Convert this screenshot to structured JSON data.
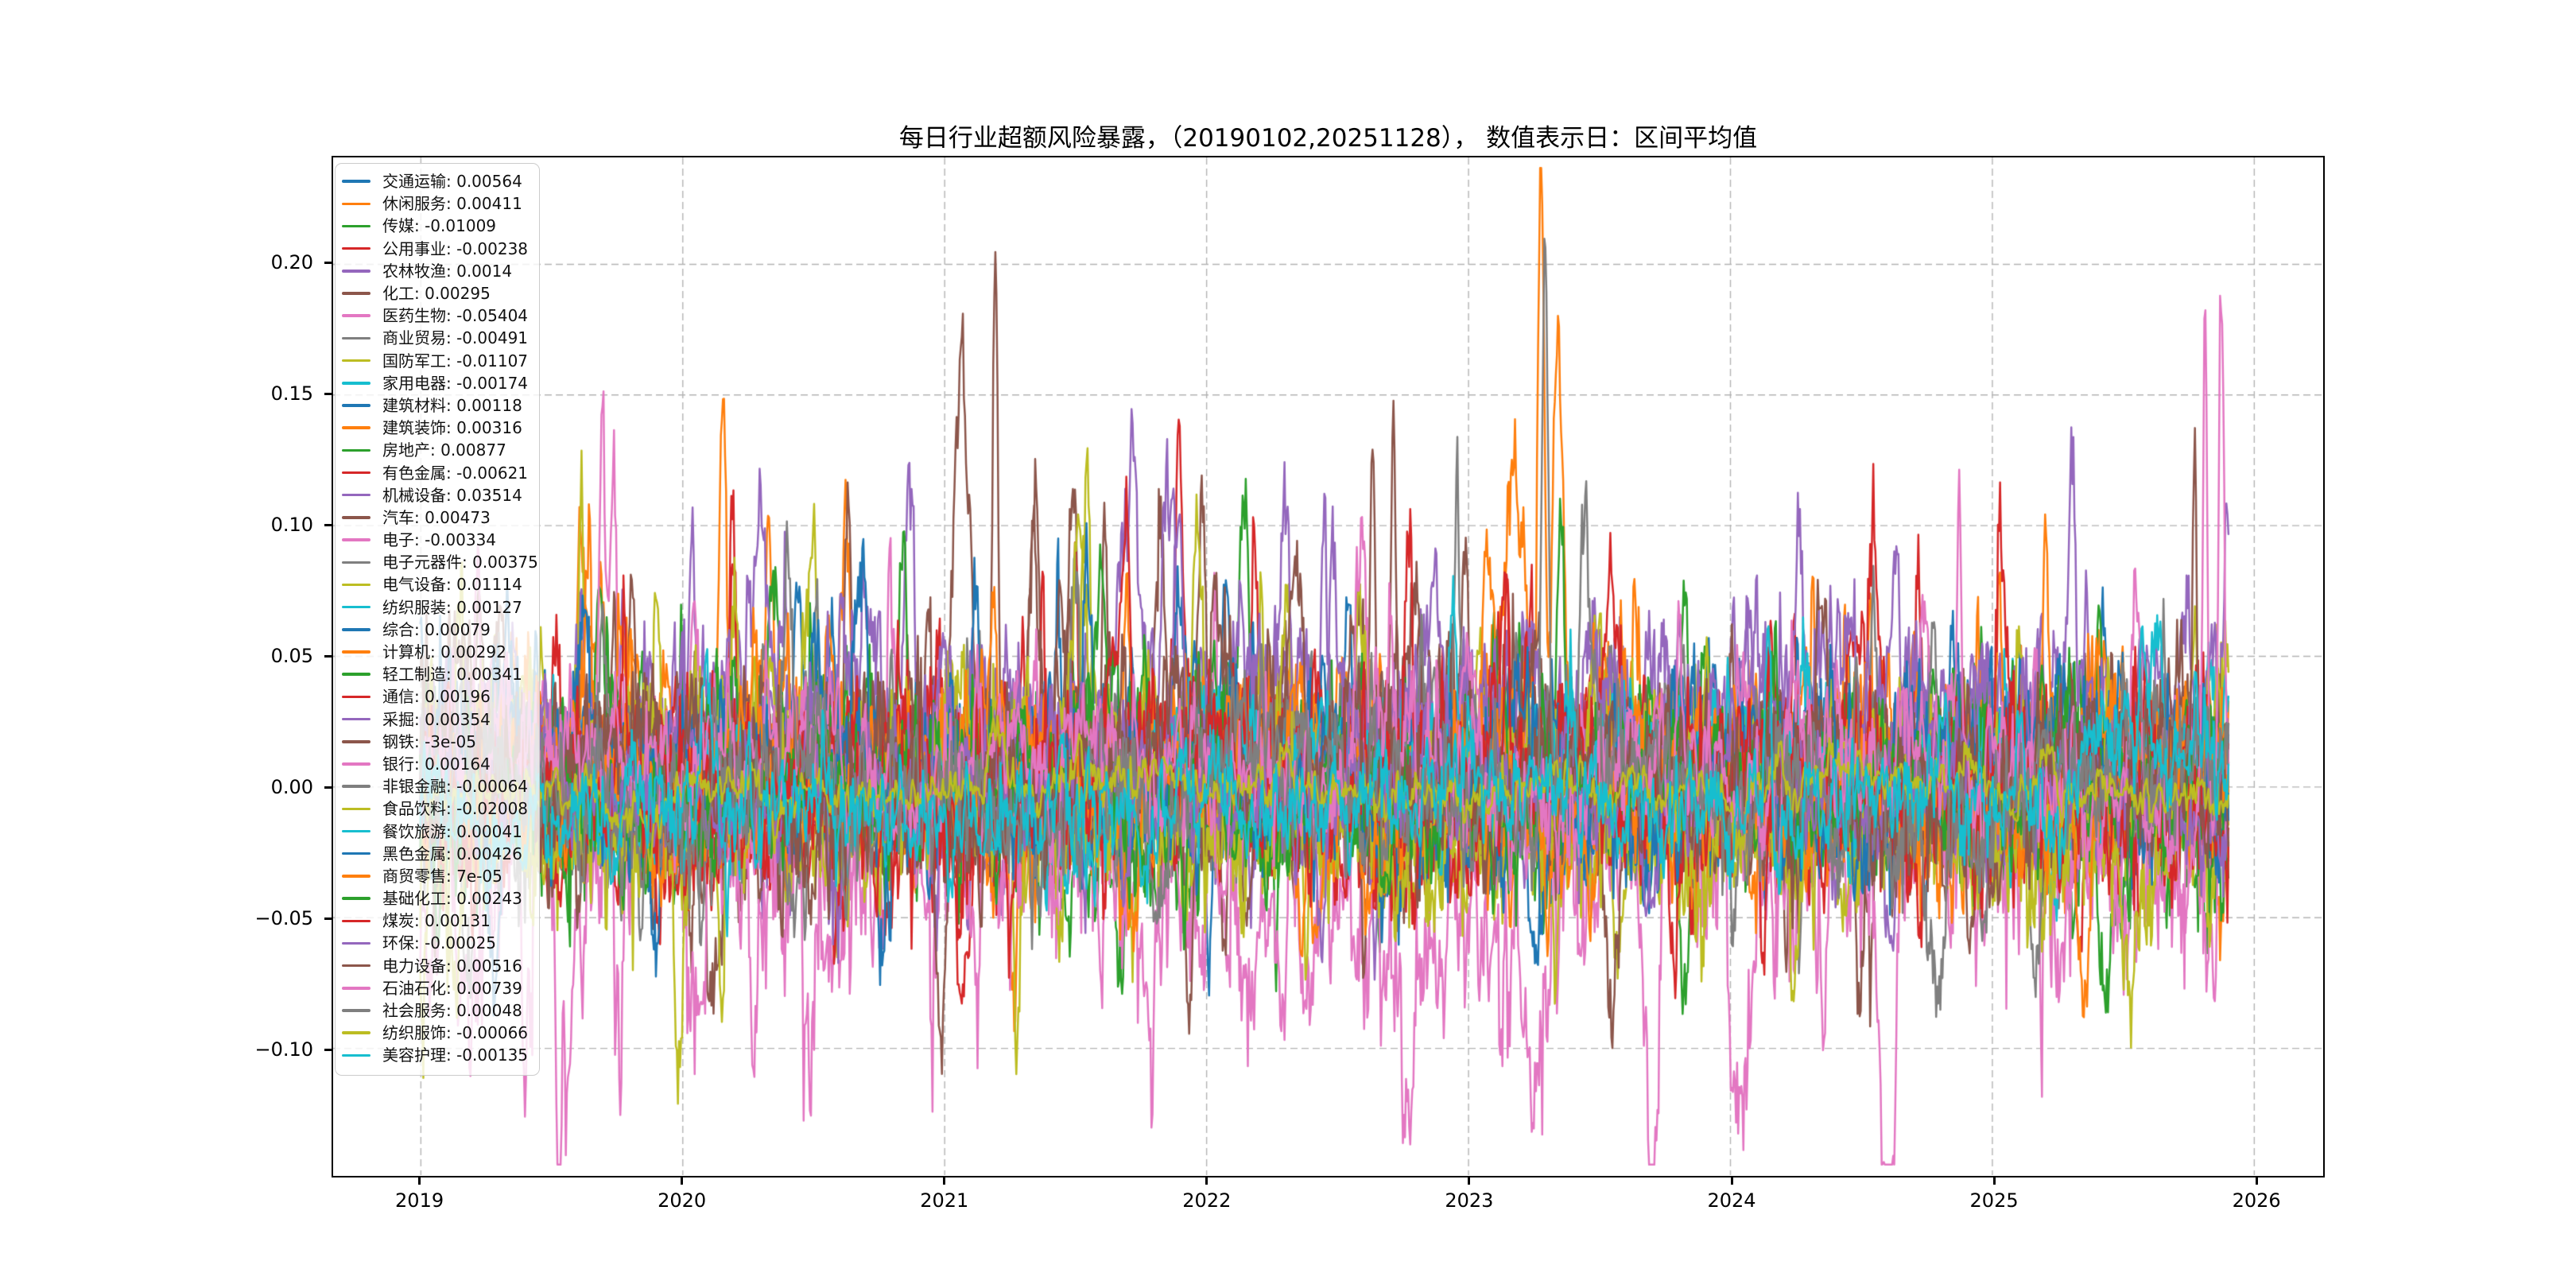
{
  "chart_data": {
    "type": "line",
    "title": "每日行业超额风险暴露，（20190102,20251128）， 数值表示日：区间平均值",
    "date_range": [
      "20190102",
      "20251128"
    ],
    "xlim": [
      2018.665,
      2026.26
    ],
    "ylim": [
      -0.1485,
      0.2409
    ],
    "x_ticks": [
      2019,
      2020,
      2021,
      2022,
      2023,
      2024,
      2025,
      2026
    ],
    "x_tick_labels": [
      "2019",
      "2020",
      "2021",
      "2022",
      "2023",
      "2024",
      "2025",
      "2026"
    ],
    "y_ticks": [
      0.2,
      0.15,
      0.1,
      0.05,
      0.0,
      -0.05,
      -0.1
    ],
    "y_tick_labels": [
      "0.20",
      "0.15",
      "0.10",
      "0.05",
      "0.00",
      "−0.05",
      "−0.10"
    ],
    "x_start": 2019.005,
    "x_end": 2025.91,
    "grid": {
      "on": true,
      "linestyle": "dashed",
      "color": "#b3b3b3"
    },
    "legend": {
      "position": "upper left",
      "framealpha": 0.8,
      "border_color": "#cccccc"
    },
    "line_width": 2.5,
    "n_series": 40,
    "series": [
      {
        "name": "交通运输",
        "value": 0.00564,
        "label": "交通运输: 0.00564",
        "color": "#1f77b4",
        "amp": 0.011,
        "peaks": [
          [
            2022.55,
            0.088,
            0.018
          ]
        ]
      },
      {
        "name": "休闲服务",
        "value": 0.00411,
        "label": "休闲服务: 0.00411",
        "color": "#ff7f0e",
        "amp": 0.014,
        "peaks": [
          [
            2019.62,
            0.075,
            0.02
          ],
          [
            2020.16,
            0.124,
            0.012
          ],
          [
            2020.34,
            0.093,
            0.015
          ],
          [
            2020.63,
            0.08,
            0.02
          ],
          [
            2023.15,
            0.075,
            0.045
          ],
          [
            2023.285,
            0.225,
            0.013
          ],
          [
            2023.35,
            0.16,
            0.018
          ],
          [
            2024.9,
            -0.062,
            0.025
          ]
        ]
      },
      {
        "name": "传媒",
        "value": -0.01009,
        "label": "传媒: -0.01009",
        "color": "#2ca02c",
        "amp": 0.013,
        "peaks": [
          [
            2020.35,
            0.09,
            0.018
          ],
          [
            2023.36,
            0.115,
            0.014
          ],
          [
            2025.6,
            0.065,
            0.02
          ]
        ]
      },
      {
        "name": "公用事业",
        "value": -0.00238,
        "label": "公用事业: -0.00238",
        "color": "#d62728",
        "amp": 0.01,
        "peaks": [
          [
            2020.2,
            0.08,
            0.015
          ]
        ]
      },
      {
        "name": "农林牧渔",
        "value": 0.0014,
        "label": "农林牧渔: 0.0014",
        "color": "#9467bd",
        "amp": 0.012,
        "peaks": [
          [
            2019.78,
            0.095,
            0.014
          ],
          [
            2020.87,
            0.095,
            0.016
          ]
        ]
      },
      {
        "name": "化工",
        "value": 0.00295,
        "label": "化工: 0.00295",
        "color": "#8c564b",
        "amp": 0.014,
        "peaks": [
          [
            2020.64,
            0.122,
            0.013
          ],
          [
            2021.08,
            0.128,
            0.028
          ],
          [
            2021.2,
            0.183,
            0.011
          ],
          [
            2021.35,
            0.11,
            0.02
          ],
          [
            2021.5,
            0.104,
            0.024
          ],
          [
            2021.62,
            0.112,
            0.012
          ],
          [
            2021.83,
            0.114,
            0.018
          ]
        ]
      },
      {
        "name": "医药生物",
        "value": -0.05404,
        "label": "医药生物: -0.05404",
        "color": "#e377c2",
        "amp": 0.02,
        "base": -0.046,
        "peaks": [
          [
            2019.77,
            -0.104,
            0.018
          ],
          [
            2020.06,
            -0.099,
            0.016
          ],
          [
            2020.5,
            -0.072,
            0.03
          ],
          [
            2020.96,
            -0.099,
            0.018
          ],
          [
            2021.12,
            -0.104,
            0.014
          ],
          [
            2021.8,
            -0.088,
            0.03
          ],
          [
            2022.3,
            -0.085,
            0.03
          ],
          [
            2022.8,
            -0.09,
            0.028
          ],
          [
            2023.3,
            -0.1,
            0.028
          ],
          [
            2023.71,
            -0.132,
            0.022
          ],
          [
            2024.05,
            -0.112,
            0.028
          ],
          [
            2024.6,
            -0.125,
            0.018
          ],
          [
            2024.95,
            -0.113,
            0.018
          ],
          [
            2025.55,
            -0.066,
            0.03
          ],
          [
            2025.85,
            -0.111,
            0.012
          ]
        ]
      },
      {
        "name": "商业贸易",
        "value": -0.00491,
        "label": "商业贸易: -0.00491",
        "color": "#7f7f7f",
        "amp": 0.011,
        "peaks": []
      },
      {
        "name": "国防军工",
        "value": -0.01107,
        "label": "国防军工: -0.01107",
        "color": "#bcbd22",
        "amp": 0.013,
        "peaks": [
          [
            2019.62,
            0.118,
            0.012
          ],
          [
            2021.55,
            0.095,
            0.018
          ],
          [
            2023.05,
            0.08,
            0.02
          ]
        ]
      },
      {
        "name": "家用电器",
        "value": -0.00174,
        "label": "家用电器: -0.00174",
        "color": "#17becf",
        "amp": 0.009,
        "peaks": []
      },
      {
        "name": "建筑材料",
        "value": 0.00118,
        "label": "建筑材料: 0.00118",
        "color": "#1f77b4",
        "amp": 0.008,
        "base": -0.002,
        "peaks": [
          [
            2020.45,
            0.07,
            0.02
          ]
        ]
      },
      {
        "name": "建筑装饰",
        "value": 0.00316,
        "label": "建筑装饰: 0.00316",
        "color": "#ff7f0e",
        "amp": 0.011,
        "peaks": [
          [
            2024.95,
            0.072,
            0.014
          ]
        ]
      },
      {
        "name": "房地产",
        "value": 0.00877,
        "label": "房地产: 0.00877",
        "color": "#2ca02c",
        "amp": 0.013,
        "peaks": [
          [
            2020.85,
            0.099,
            0.014
          ],
          [
            2022.15,
            0.088,
            0.018
          ],
          [
            2025.35,
            0.063,
            0.02
          ]
        ]
      },
      {
        "name": "有色金属",
        "value": -0.00621,
        "label": "有色金属: -0.00621",
        "color": "#d62728",
        "amp": 0.014,
        "peaks": [
          [
            2020.2,
            0.094,
            0.014
          ],
          [
            2021.9,
            0.099,
            0.018
          ],
          [
            2022.19,
            0.088,
            0.014
          ],
          [
            2024.55,
            0.08,
            0.018
          ]
        ]
      },
      {
        "name": "机械设备",
        "value": 0.03514,
        "label": "机械设备: 0.03514",
        "color": "#9467bd",
        "amp": 0.014,
        "base": 0.033,
        "peaks": [
          [
            2021.7,
            0.09,
            0.024
          ],
          [
            2024.27,
            0.114,
            0.013
          ],
          [
            2025.31,
            0.126,
            0.011
          ],
          [
            2025.9,
            0.072,
            0.014
          ]
        ]
      },
      {
        "name": "汽车",
        "value": 0.00473,
        "label": "汽车: 0.00473",
        "color": "#8c564b",
        "amp": 0.013,
        "peaks": [
          [
            2021.35,
            0.09,
            0.018
          ],
          [
            2022.64,
            0.124,
            0.011
          ],
          [
            2022.72,
            0.116,
            0.01
          ],
          [
            2023.0,
            0.088,
            0.025
          ]
        ]
      },
      {
        "name": "电子",
        "value": -0.00334,
        "label": "电子: -0.00334",
        "color": "#e377c2",
        "amp": 0.012,
        "peaks": [
          [
            2019.7,
            0.128,
            0.011
          ],
          [
            2019.74,
            0.111,
            0.016
          ],
          [
            2020.05,
            0.08,
            0.018
          ]
        ]
      },
      {
        "name": "电子元器件",
        "value": 0.00375,
        "label": "电子元器件: 0.00375",
        "color": "#7f7f7f",
        "amp": 0.012,
        "peaks": [
          [
            2021.5,
            0.08,
            0.018
          ],
          [
            2025.63,
            0.046,
            0.009
          ]
        ]
      },
      {
        "name": "电气设备",
        "value": 0.01114,
        "label": "电气设备: 0.01114",
        "color": "#bcbd22",
        "amp": 0.014,
        "peaks": [
          [
            2020.5,
            0.104,
            0.018
          ],
          [
            2021.97,
            0.118,
            0.013
          ],
          [
            2022.6,
            0.078,
            0.022
          ]
        ]
      },
      {
        "name": "纺织服装",
        "value": 0.00127,
        "label": "纺织服装: 0.00127",
        "color": "#17becf",
        "amp": 0.0035,
        "peaks": []
      },
      {
        "name": "综合",
        "value": 0.00079,
        "label": "综合: 0.00079",
        "color": "#1f77b4",
        "amp": 0.013,
        "peaks": [
          [
            2020.7,
            0.085,
            0.018
          ],
          [
            2021.9,
            0.08,
            0.018
          ]
        ]
      },
      {
        "name": "计算机",
        "value": 0.00292,
        "label": "计算机: 0.00292",
        "color": "#ff7f0e",
        "amp": 0.014,
        "peaks": [
          [
            2019.65,
            0.08,
            0.018
          ],
          [
            2023.08,
            0.099,
            0.018
          ],
          [
            2023.5,
            0.08,
            0.025
          ],
          [
            2025.21,
            0.101,
            0.012
          ]
        ]
      },
      {
        "name": "轻工制造",
        "value": 0.00341,
        "label": "轻工制造: 0.00341",
        "color": "#2ca02c",
        "amp": 0.01,
        "peaks": []
      },
      {
        "name": "通信",
        "value": 0.00196,
        "label": "通信: 0.00196",
        "color": "#d62728",
        "amp": 0.012,
        "peaks": [
          [
            2023.15,
            0.09,
            0.018
          ],
          [
            2025.05,
            0.07,
            0.018
          ]
        ]
      },
      {
        "name": "采掘",
        "value": 0.00354,
        "label": "采掘: 0.00354",
        "color": "#9467bd",
        "amp": 0.013,
        "peaks": [
          [
            2021.9,
            0.108,
            0.013
          ],
          [
            2022.3,
            0.08,
            0.018
          ]
        ]
      },
      {
        "name": "钢铁",
        "value": -3e-05,
        "label": "钢铁: -3e-05",
        "color": "#8c564b",
        "amp": 0.012,
        "peaks": [
          [
            2021.45,
            0.09,
            0.018
          ],
          [
            2023.55,
            -0.086,
            0.028
          ],
          [
            2024.5,
            -0.078,
            0.022
          ],
          [
            2025.0,
            -0.052,
            0.028
          ]
        ]
      },
      {
        "name": "银行",
        "value": 0.00164,
        "label": "银行: 0.00164",
        "color": "#e377c2",
        "amp": 0.007,
        "peaks": [
          [
            2023.0,
            0.045,
            0.05
          ]
        ]
      },
      {
        "name": "非银金融",
        "value": -0.00064,
        "label": "非银金融: -0.00064",
        "color": "#7f7f7f",
        "amp": 0.009,
        "peaks": [
          [
            2020.52,
            0.068,
            0.01
          ],
          [
            2024.78,
            0.078,
            0.01
          ]
        ]
      },
      {
        "name": "食品饮料",
        "value": -0.02008,
        "label": "食品饮料: -0.02008",
        "color": "#bcbd22",
        "amp": 0.015,
        "base": -0.018,
        "peaks": [
          [
            2020.0,
            -0.052,
            0.02
          ],
          [
            2021.28,
            -0.065,
            0.018
          ],
          [
            2023.9,
            -0.06,
            0.028
          ],
          [
            2025.5,
            -0.056,
            0.028
          ]
        ]
      },
      {
        "name": "餐饮旅游",
        "value": 0.00041,
        "label": "餐饮旅游: 0.00041",
        "color": "#17becf",
        "amp": 0.01,
        "peaks": [
          [
            2022.95,
            0.07,
            0.014
          ]
        ]
      },
      {
        "name": "黑色金属",
        "value": 0.00426,
        "label": "黑色金属: 0.00426",
        "color": "#1f77b4",
        "amp": 0.012,
        "peaks": [
          [
            2021.55,
            0.085,
            0.014
          ]
        ]
      },
      {
        "name": "商贸零售",
        "value": 7e-05,
        "label": "商贸零售: 7e-05",
        "color": "#ff7f0e",
        "amp": 0.011,
        "peaks": [
          [
            2025.35,
            -0.06,
            0.02
          ]
        ]
      },
      {
        "name": "基础化工",
        "value": 0.00243,
        "label": "基础化工: 0.00243",
        "color": "#2ca02c",
        "amp": 0.012,
        "peaks": [
          [
            2021.6,
            0.08,
            0.022
          ]
        ]
      },
      {
        "name": "煤炭",
        "value": 0.00131,
        "label": "煤炭: 0.00131",
        "color": "#d62728",
        "amp": 0.014,
        "peaks": [
          [
            2021.7,
            0.1,
            0.018
          ],
          [
            2022.78,
            0.11,
            0.013
          ],
          [
            2023.8,
            -0.06,
            0.02
          ]
        ]
      },
      {
        "name": "环保",
        "value": -0.00025,
        "label": "环保: -0.00025",
        "color": "#9467bd",
        "amp": 0.01,
        "peaks": []
      },
      {
        "name": "电力设备",
        "value": 0.00516,
        "label": "电力设备: 0.00516",
        "color": "#8c564b",
        "amp": 0.013,
        "peaks": [
          [
            2022.35,
            0.088,
            0.022
          ],
          [
            2024.35,
            0.08,
            0.018
          ],
          [
            2025.78,
            0.16,
            0.009
          ]
        ]
      },
      {
        "name": "石油石化",
        "value": 0.00739,
        "label": "石油石化: 0.00739",
        "color": "#e377c2",
        "amp": 0.012,
        "peaks": [
          [
            2022.6,
            0.08,
            0.018
          ],
          [
            2023.81,
            0.076,
            0.008
          ],
          [
            2024.88,
            0.131,
            0.008
          ],
          [
            2025.55,
            0.09,
            0.018
          ],
          [
            2025.82,
            0.178,
            0.008
          ],
          [
            2025.88,
            0.184,
            0.008
          ]
        ]
      },
      {
        "name": "社会服务",
        "value": 0.00048,
        "label": "社会服务: 0.00048",
        "color": "#7f7f7f",
        "amp": 0.012,
        "peaks": [
          [
            2020.4,
            0.08,
            0.018
          ],
          [
            2023.3,
            0.139,
            0.011
          ],
          [
            2023.45,
            0.088,
            0.018
          ]
        ]
      },
      {
        "name": "纺织服饰",
        "value": -0.00066,
        "label": "纺织服饰: -0.00066",
        "color": "#bcbd22",
        "amp": 0.004,
        "peaks": []
      },
      {
        "name": "美容护理",
        "value": -0.00135,
        "label": "美容护理: -0.00135",
        "color": "#17becf",
        "amp": 0.009,
        "peaks": [
          [
            2024.15,
            0.074,
            0.011
          ]
        ]
      }
    ]
  }
}
